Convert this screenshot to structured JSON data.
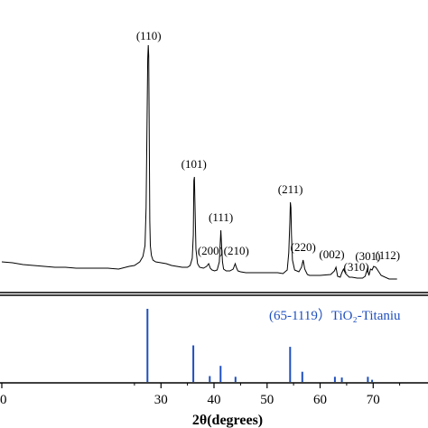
{
  "chart_data": [
    {
      "type": "line",
      "panel": "xrd-pattern",
      "title": "",
      "xlabel": "",
      "ylabel": "",
      "xlim": [
        0,
        80
      ],
      "series": [
        {
          "x": [
            0,
            2,
            4,
            6,
            8,
            10,
            12,
            14,
            16,
            18,
            20,
            22,
            24,
            25,
            26,
            26.6,
            27.0,
            27.2,
            27.4,
            27.5,
            27.6,
            27.7,
            27.8,
            27.9,
            28.0,
            28.2,
            28.5,
            29,
            30,
            31,
            32,
            33,
            34,
            35,
            35.5,
            35.9,
            36.1,
            36.2,
            36.3,
            36.4,
            36.6,
            36.9,
            37.3,
            38,
            38.6,
            39.0,
            39.3,
            39.6,
            40.1,
            40.6,
            41.0,
            41.2,
            41.3,
            41.4,
            41.6,
            41.8,
            42.3,
            43,
            43.6,
            44.0,
            44.2,
            44.5,
            45,
            46,
            48,
            50,
            52,
            53,
            53.8,
            54.1,
            54.3,
            54.4,
            54.5,
            54.6,
            54.8,
            55.2,
            56,
            56.5,
            56.8,
            57.1,
            57.6,
            58,
            60,
            62,
            62.7,
            63.0,
            63.3,
            63.8,
            64.1,
            64.4,
            64.8,
            65.5,
            66,
            67,
            68,
            68.5,
            68.9,
            69.2,
            69.5,
            69.8,
            70.1,
            70.5,
            71.5,
            73,
            74.5
          ],
          "y": [
            290,
            291,
            293,
            294,
            295,
            296,
            296,
            297,
            297,
            297,
            297,
            298,
            295,
            294,
            290,
            284,
            272,
            230,
            120,
            65,
            50,
            62,
            150,
            245,
            272,
            283,
            288,
            290,
            291,
            292,
            294,
            295,
            296,
            296,
            294,
            286,
            260,
            200,
            196,
            220,
            276,
            292,
            296,
            297,
            295,
            292,
            297,
            299,
            300,
            299,
            290,
            265,
            255,
            268,
            290,
            298,
            300,
            300,
            298,
            292,
            296,
            300,
            301,
            302,
            302,
            302,
            302,
            303,
            299,
            280,
            246,
            224,
            230,
            260,
            288,
            299,
            301,
            296,
            288,
            298,
            304,
            305,
            305,
            304,
            300,
            296,
            306,
            307,
            302,
            298,
            303,
            307,
            307,
            308,
            308,
            306,
            298,
            305,
            298,
            299,
            295,
            296,
            305,
            309,
            309
          ],
          "coordinate_note": ""
        }
      ],
      "annotations": [
        {
          "label": "(110)",
          "x": 27.7
        },
        {
          "label": "(101)",
          "x": 36.2
        },
        {
          "label": "(200)",
          "x": 39.3
        },
        {
          "label": "(111)",
          "x": 41.3
        },
        {
          "label": "(210)",
          "x": 44.2
        },
        {
          "label": "(211)",
          "x": 54.4
        },
        {
          "label": "(220)",
          "x": 56.8
        },
        {
          "label": "(002)",
          "x": 62.9
        },
        {
          "label": "(310)",
          "x": 64.1
        },
        {
          "label": "(301)",
          "x": 69.0
        },
        {
          "label": "(112)",
          "x": 70.0
        }
      ]
    },
    {
      "type": "bar",
      "panel": "reference-pattern",
      "title": "(65-1119）TiO₂-Titaniu",
      "xlabel": "2θ(degrees)",
      "ylabel": "",
      "xlim": [
        0,
        80
      ],
      "x_ticks": [
        "0",
        "30",
        "40",
        "50",
        "60",
        "70"
      ],
      "x_tick_values": [
        0,
        30,
        40,
        50,
        60,
        70
      ],
      "ylim": [
        0,
        100
      ],
      "color": "#1f4fbf",
      "x": [
        27.45,
        36.1,
        39.2,
        41.25,
        44.05,
        54.35,
        56.65,
        62.8,
        64.1,
        69.0,
        69.8
      ],
      "values": [
        100,
        50,
        8,
        22,
        7,
        48,
        14,
        7,
        6,
        7,
        3
      ]
    }
  ]
}
